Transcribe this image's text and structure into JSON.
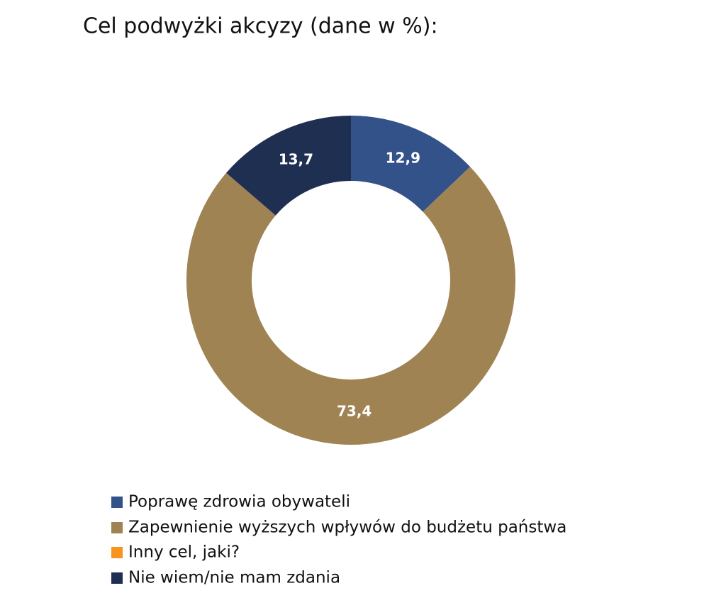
{
  "chart_data": {
    "type": "donut",
    "title": "Cel podwyżki akcyzy (dane w %):",
    "categories": [
      "Poprawę zdrowia obywateli",
      "Zapewnienie wyższych wpływów do budżetu państwa",
      "Inny cel, jaki?",
      "Nie wiem/nie mam zdania"
    ],
    "values": [
      12.9,
      73.4,
      0,
      13.7
    ],
    "value_labels": [
      "12,9",
      "73,4",
      null,
      "13,7"
    ],
    "colors": [
      "#34528a",
      "#a08352",
      "#f7941d",
      "#1f2f52"
    ]
  }
}
